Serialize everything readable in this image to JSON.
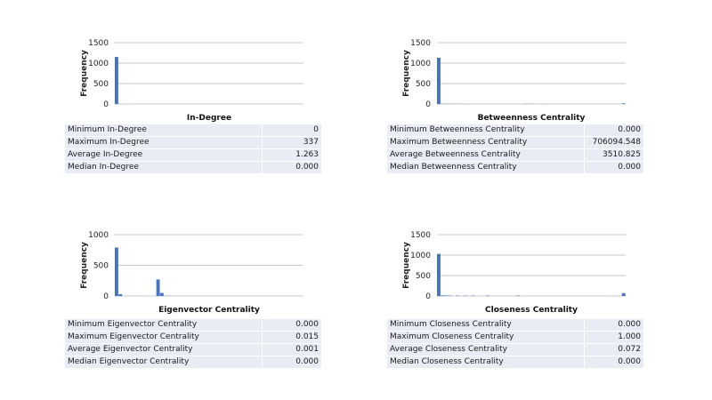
{
  "chart_data": [
    {
      "type": "bar",
      "title": "In-Degree",
      "ylabel": "Frequency",
      "ylim": [
        0,
        1500
      ],
      "yticks": [
        0,
        500,
        1000,
        1500
      ],
      "grid": true,
      "values": [
        1150,
        2,
        1,
        0,
        0,
        0,
        1,
        0,
        1,
        0,
        0,
        0,
        0,
        0,
        0,
        0,
        0,
        0,
        0,
        0,
        0,
        0,
        0,
        0,
        0,
        0,
        0,
        0,
        0,
        0,
        0,
        0,
        0,
        0,
        0,
        0,
        0,
        0,
        0,
        0,
        0,
        0,
        0,
        0,
        0,
        0,
        0,
        0,
        0,
        0
      ]
    },
    {
      "type": "bar",
      "title": "Betweenness Centrality",
      "ylabel": "Frequency",
      "ylim": [
        0,
        1500
      ],
      "yticks": [
        0,
        500,
        1000,
        1500
      ],
      "grid": true,
      "values": [
        1130,
        6,
        4,
        3,
        3,
        2,
        2,
        2,
        1,
        0,
        0,
        0,
        0,
        0,
        0,
        0,
        0,
        0,
        0,
        0,
        0,
        0,
        0,
        3,
        4,
        2,
        0,
        0,
        3,
        0,
        0,
        0,
        0,
        0,
        0,
        0,
        0,
        0,
        0,
        0,
        0,
        0,
        0,
        0,
        0,
        0,
        0,
        0,
        0,
        15
      ]
    },
    {
      "type": "bar",
      "title": "Eigenvector Centrality",
      "ylabel": "Frequency",
      "ylim": [
        0,
        1000
      ],
      "yticks": [
        0,
        500,
        1000
      ],
      "grid": true,
      "values": [
        790,
        30,
        0,
        0,
        0,
        0,
        0,
        0,
        0,
        0,
        0,
        270,
        50,
        2,
        2,
        1,
        0,
        0,
        0,
        0,
        0,
        0,
        0,
        0,
        0,
        0,
        0,
        0,
        0,
        0,
        0,
        0,
        0,
        0,
        0,
        0,
        0,
        0,
        0,
        0,
        0,
        0,
        0,
        0,
        0,
        0,
        0,
        0,
        0,
        0
      ]
    },
    {
      "type": "bar",
      "title": "Closeness Centrality",
      "ylabel": "Frequency",
      "ylim": [
        0,
        1500
      ],
      "yticks": [
        0,
        500,
        1000,
        1500
      ],
      "grid": true,
      "values": [
        1030,
        15,
        12,
        10,
        0,
        10,
        0,
        10,
        0,
        10,
        0,
        0,
        0,
        10,
        0,
        0,
        0,
        0,
        0,
        0,
        0,
        12,
        0,
        0,
        0,
        0,
        0,
        0,
        0,
        0,
        0,
        0,
        0,
        0,
        0,
        0,
        0,
        0,
        0,
        0,
        0,
        0,
        0,
        0,
        0,
        0,
        0,
        0,
        0,
        70
      ]
    }
  ],
  "tables": [
    {
      "rows": [
        {
          "label": "Minimum  In-Degree",
          "value": "0"
        },
        {
          "label": "Maximum  In-Degree",
          "value": "337"
        },
        {
          "label": "Average  In-Degree",
          "value": "1.263"
        },
        {
          "label": "Median  In-Degree",
          "value": "0.000"
        }
      ]
    },
    {
      "rows": [
        {
          "label": "Minimum  Betweenness Centrality",
          "value": "0.000"
        },
        {
          "label": "Maximum  Betweenness Centrality",
          "value": "706094.548"
        },
        {
          "label": "Average  Betweenness Centrality",
          "value": "3510.825"
        },
        {
          "label": "Median  Betweenness Centrality",
          "value": "0.000"
        }
      ]
    },
    {
      "rows": [
        {
          "label": "Minimum  Eigenvector Centrality",
          "value": "0.000"
        },
        {
          "label": "Maximum  Eigenvector Centrality",
          "value": "0.015"
        },
        {
          "label": "Average  Eigenvector Centrality",
          "value": "0.001"
        },
        {
          "label": "Median  Eigenvector Centrality",
          "value": "0.000"
        }
      ]
    },
    {
      "rows": [
        {
          "label": "Minimum  Closeness Centrality",
          "value": "0.000"
        },
        {
          "label": "Maximum  Closeness Centrality",
          "value": "1.000"
        },
        {
          "label": "Average  Closeness Centrality",
          "value": "0.072"
        },
        {
          "label": "Median  Closeness Centrality",
          "value": "0.000"
        }
      ]
    }
  ],
  "colors": {
    "bar": "#4472c4",
    "table_bg": "#e8ecf4",
    "grid": "#c8c8c8"
  }
}
